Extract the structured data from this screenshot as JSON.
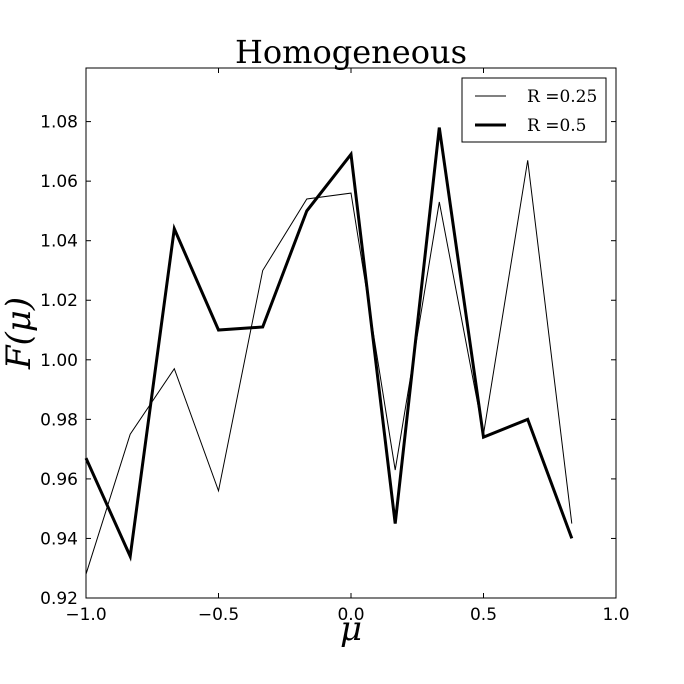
{
  "chart_data": {
    "type": "line",
    "title": "Homogeneous",
    "xlabel": "μ",
    "ylabel": "F(μ)",
    "xlim": [
      -1.0,
      1.0
    ],
    "ylim": [
      0.92,
      1.098
    ],
    "xticks": [
      -1.0,
      -0.5,
      0.0,
      0.5,
      1.0
    ],
    "xtick_labels": [
      "−1.0",
      "−0.5",
      "0.0",
      "0.5",
      "1.0"
    ],
    "yticks": [
      0.92,
      0.94,
      0.96,
      0.98,
      1.0,
      1.02,
      1.04,
      1.06,
      1.08
    ],
    "ytick_labels": [
      "0.92",
      "0.94",
      "0.96",
      "0.98",
      "1.00",
      "1.02",
      "1.04",
      "1.06",
      "1.08"
    ],
    "grid": false,
    "legend_position": "top-right",
    "series": [
      {
        "name": "R =0.25",
        "color": "#000000",
        "style": "thin",
        "x": [
          -1.0,
          -0.8333,
          -0.6667,
          -0.5,
          -0.3333,
          -0.1667,
          0.0,
          0.1667,
          0.3333,
          0.5,
          0.6667,
          0.8333
        ],
        "y": [
          0.928,
          0.975,
          0.997,
          0.956,
          1.03,
          1.054,
          1.056,
          0.963,
          1.053,
          0.975,
          1.067,
          0.945
        ]
      },
      {
        "name": "R =0.5",
        "color": "#000000",
        "style": "thick",
        "x": [
          -1.0,
          -0.8333,
          -0.6667,
          -0.5,
          -0.3333,
          -0.1667,
          0.0,
          0.1667,
          0.3333,
          0.5,
          0.6667,
          0.8333
        ],
        "y": [
          0.967,
          0.934,
          1.044,
          1.01,
          1.011,
          1.05,
          1.069,
          0.945,
          1.078,
          0.974,
          0.98,
          0.94
        ]
      }
    ]
  }
}
